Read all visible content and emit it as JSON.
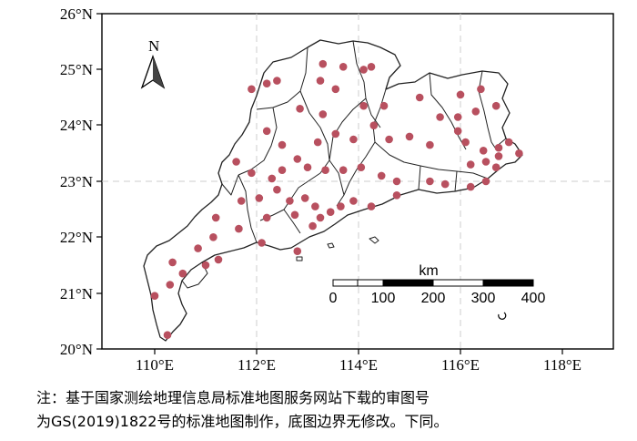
{
  "map": {
    "x_ticks": [
      "110°E",
      "112°E",
      "114°E",
      "116°E",
      "118°E"
    ],
    "y_ticks": [
      "26°N",
      "25°N",
      "24°N",
      "23°N",
      "22°N",
      "21°N",
      "20°N"
    ],
    "north_label": "N",
    "scale_bar": {
      "unit": "km",
      "ticks": [
        "0",
        "100",
        "200",
        "300",
        "400"
      ]
    },
    "colors": {
      "station": "#b8505f",
      "grid": "#bbbbbb",
      "boundary": "#222222"
    },
    "stations": [
      [
        113.3,
        25.1
      ],
      [
        113.7,
        25.05
      ],
      [
        114.1,
        25.0
      ],
      [
        114.25,
        25.05
      ],
      [
        113.25,
        24.8
      ],
      [
        113.55,
        24.65
      ],
      [
        111.9,
        24.65
      ],
      [
        112.2,
        24.75
      ],
      [
        112.4,
        24.8
      ],
      [
        112.85,
        24.3
      ],
      [
        113.3,
        24.2
      ],
      [
        114.1,
        24.35
      ],
      [
        114.5,
        24.35
      ],
      [
        115.2,
        24.5
      ],
      [
        116.0,
        24.55
      ],
      [
        116.4,
        24.65
      ],
      [
        115.6,
        24.15
      ],
      [
        115.95,
        24.15
      ],
      [
        116.3,
        24.25
      ],
      [
        116.7,
        24.35
      ],
      [
        112.2,
        23.9
      ],
      [
        112.5,
        23.65
      ],
      [
        112.8,
        23.4
      ],
      [
        113.0,
        23.25
      ],
      [
        113.2,
        23.7
      ],
      [
        113.55,
        23.85
      ],
      [
        113.9,
        23.75
      ],
      [
        114.3,
        24.0
      ],
      [
        114.6,
        23.75
      ],
      [
        115.0,
        23.8
      ],
      [
        115.4,
        23.65
      ],
      [
        115.95,
        23.9
      ],
      [
        116.1,
        23.7
      ],
      [
        116.45,
        23.55
      ],
      [
        116.75,
        23.6
      ],
      [
        116.95,
        23.7
      ],
      [
        117.15,
        23.5
      ],
      [
        116.75,
        23.45
      ],
      [
        116.5,
        23.35
      ],
      [
        116.2,
        23.3
      ],
      [
        116.7,
        23.25
      ],
      [
        111.6,
        23.35
      ],
      [
        111.9,
        23.15
      ],
      [
        112.3,
        23.05
      ],
      [
        112.5,
        23.2
      ],
      [
        113.35,
        23.2
      ],
      [
        113.7,
        23.2
      ],
      [
        114.05,
        23.25
      ],
      [
        114.45,
        23.1
      ],
      [
        114.75,
        23.0
      ],
      [
        115.4,
        23.0
      ],
      [
        115.7,
        22.95
      ],
      [
        116.2,
        22.9
      ],
      [
        116.5,
        23.0
      ],
      [
        111.7,
        22.65
      ],
      [
        112.05,
        22.7
      ],
      [
        112.4,
        22.85
      ],
      [
        112.65,
        22.65
      ],
      [
        112.95,
        22.7
      ],
      [
        113.15,
        22.55
      ],
      [
        113.25,
        22.35
      ],
      [
        113.45,
        22.45
      ],
      [
        113.65,
        22.55
      ],
      [
        113.9,
        22.65
      ],
      [
        114.25,
        22.55
      ],
      [
        114.75,
        22.75
      ],
      [
        111.2,
        22.35
      ],
      [
        111.65,
        22.15
      ],
      [
        112.2,
        22.35
      ],
      [
        112.75,
        22.4
      ],
      [
        113.1,
        22.2
      ],
      [
        111.15,
        22.0
      ],
      [
        110.85,
        21.8
      ],
      [
        111.25,
        21.6
      ],
      [
        110.35,
        21.55
      ],
      [
        110.55,
        21.35
      ],
      [
        111.0,
        21.5
      ],
      [
        112.1,
        21.9
      ],
      [
        110.3,
        21.15
      ],
      [
        110.0,
        20.95
      ],
      [
        110.25,
        20.25
      ],
      [
        112.8,
        21.75
      ]
    ]
  },
  "note": {
    "line1": "注：基于国家测绘地理信息局标准地图服务网站下载的审图号",
    "line2": "为GS(2019)1822号的标准地图制作，底图边界无修改。下同。"
  }
}
